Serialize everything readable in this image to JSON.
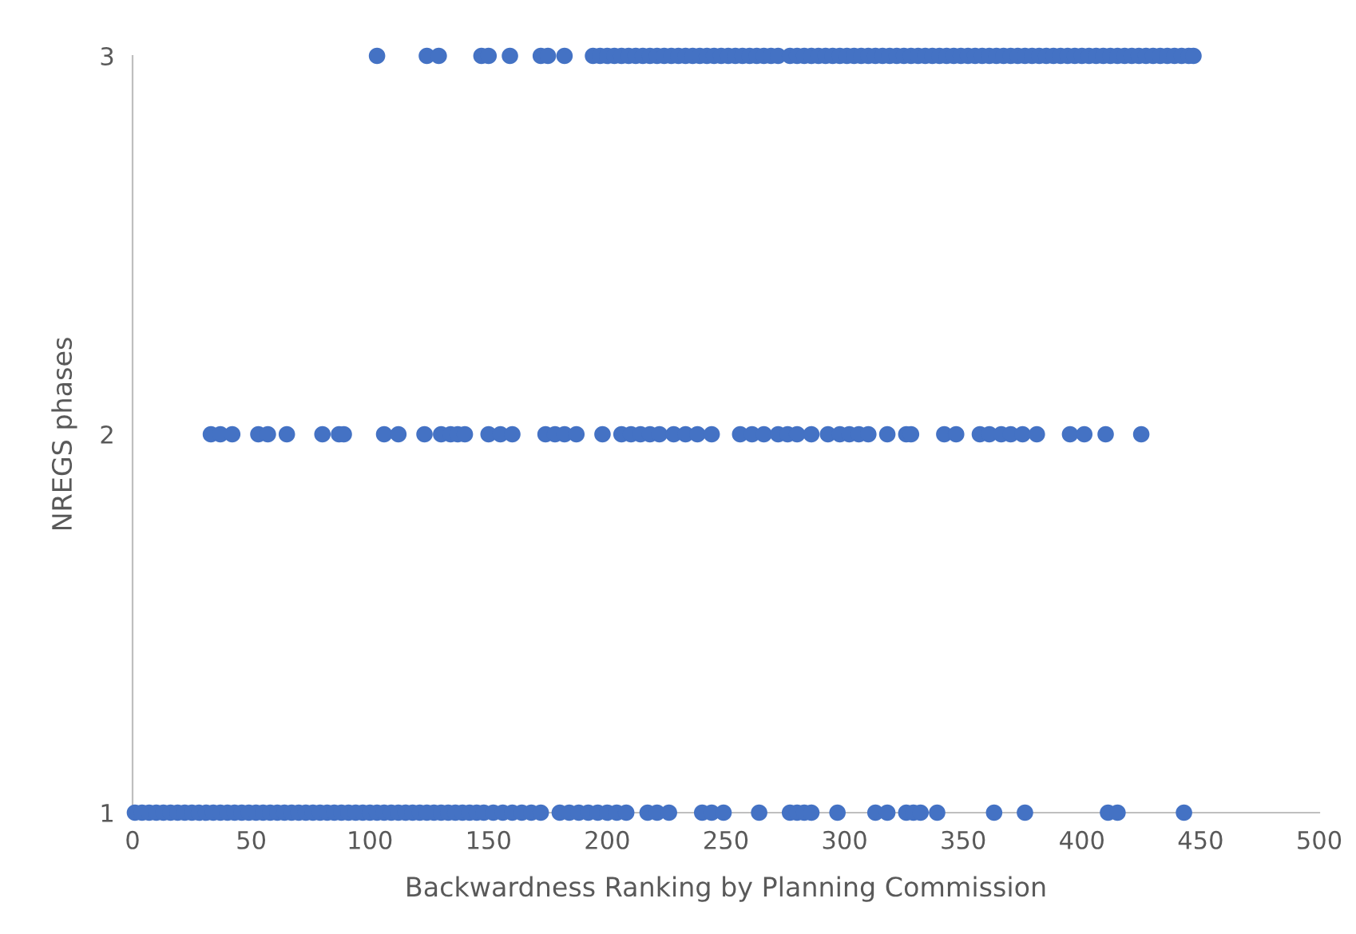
{
  "chart_data": {
    "type": "scatter",
    "xlabel": "Backwardness Ranking by Planning Commission",
    "ylabel": "NREGS phases",
    "xlim": [
      0,
      500
    ],
    "xticks": [
      0,
      50,
      100,
      150,
      200,
      250,
      300,
      350,
      400,
      450,
      500
    ],
    "ylim": [
      1,
      3
    ],
    "yticks": [
      1,
      2,
      3
    ],
    "grid": false,
    "marker": "circle",
    "series": [
      {
        "color": "#4472c4",
        "x": [
          1,
          4,
          7,
          10,
          13,
          16,
          19,
          22,
          25,
          28,
          31,
          34,
          37,
          40,
          43,
          46,
          49,
          52,
          55,
          58,
          61,
          64,
          67,
          70,
          73,
          76,
          79,
          82,
          85,
          88,
          91,
          94,
          97,
          100,
          103,
          106,
          109,
          112,
          115,
          118,
          121,
          124,
          127,
          130,
          133,
          136,
          139,
          142,
          145,
          148,
          152,
          156,
          160,
          164,
          168,
          172,
          180,
          184,
          188,
          192,
          196,
          200,
          204,
          208,
          217,
          221,
          226,
          240,
          244,
          249,
          264,
          277,
          280,
          283,
          286,
          297,
          313,
          318,
          326,
          329,
          332,
          339,
          363,
          376,
          411,
          415,
          443
        ],
        "values": [
          1,
          1,
          1,
          1,
          1,
          1,
          1,
          1,
          1,
          1,
          1,
          1,
          1,
          1,
          1,
          1,
          1,
          1,
          1,
          1,
          1,
          1,
          1,
          1,
          1,
          1,
          1,
          1,
          1,
          1,
          1,
          1,
          1,
          1,
          1,
          1,
          1,
          1,
          1,
          1,
          1,
          1,
          1,
          1,
          1,
          1,
          1,
          1,
          1,
          1,
          1,
          1,
          1,
          1,
          1,
          1,
          1,
          1,
          1,
          1,
          1,
          1,
          1,
          1,
          1,
          1,
          1,
          1,
          1,
          1,
          1,
          1,
          1,
          1,
          1,
          1,
          1,
          1,
          1,
          1,
          1,
          1,
          1,
          1,
          1,
          1,
          1
        ]
      },
      {
        "color": "#4472c4",
        "x": [
          33,
          37,
          42,
          53,
          57,
          65,
          80,
          87,
          89,
          106,
          112,
          123,
          130,
          134,
          137,
          140,
          150,
          155,
          160,
          174,
          178,
          182,
          187,
          198,
          206,
          210,
          214,
          218,
          222,
          228,
          233,
          238,
          244,
          256,
          261,
          266,
          272,
          276,
          280,
          286,
          293,
          298,
          302,
          306,
          310,
          318,
          326,
          328,
          342,
          347,
          357,
          361,
          366,
          370,
          375,
          381,
          395,
          401,
          410,
          425
        ],
        "values": [
          2,
          2,
          2,
          2,
          2,
          2,
          2,
          2,
          2,
          2,
          2,
          2,
          2,
          2,
          2,
          2,
          2,
          2,
          2,
          2,
          2,
          2,
          2,
          2,
          2,
          2,
          2,
          2,
          2,
          2,
          2,
          2,
          2,
          2,
          2,
          2,
          2,
          2,
          2,
          2,
          2,
          2,
          2,
          2,
          2,
          2,
          2,
          2,
          2,
          2,
          2,
          2,
          2,
          2,
          2,
          2,
          2,
          2,
          2,
          2
        ]
      },
      {
        "color": "#4472c4",
        "x": [
          103,
          124,
          129,
          147,
          150,
          159,
          172,
          175,
          182,
          194,
          197,
          200,
          203,
          206,
          209,
          212,
          215,
          218,
          221,
          224,
          227,
          230,
          233,
          236,
          239,
          242,
          245,
          248,
          251,
          254,
          257,
          260,
          263,
          266,
          269,
          272,
          277,
          280,
          283,
          286,
          289,
          292,
          295,
          298,
          301,
          304,
          307,
          310,
          313,
          316,
          319,
          322,
          325,
          328,
          331,
          334,
          337,
          340,
          343,
          346,
          349,
          352,
          355,
          358,
          361,
          364,
          367,
          370,
          373,
          376,
          379,
          382,
          385,
          388,
          391,
          394,
          397,
          400,
          403,
          406,
          409,
          412,
          415,
          418,
          421,
          424,
          427,
          430,
          433,
          436,
          439,
          442,
          445,
          447
        ],
        "values": [
          3,
          3,
          3,
          3,
          3,
          3,
          3,
          3,
          3,
          3,
          3,
          3,
          3,
          3,
          3,
          3,
          3,
          3,
          3,
          3,
          3,
          3,
          3,
          3,
          3,
          3,
          3,
          3,
          3,
          3,
          3,
          3,
          3,
          3,
          3,
          3,
          3,
          3,
          3,
          3,
          3,
          3,
          3,
          3,
          3,
          3,
          3,
          3,
          3,
          3,
          3,
          3,
          3,
          3,
          3,
          3,
          3,
          3,
          3,
          3,
          3,
          3,
          3,
          3,
          3,
          3,
          3,
          3,
          3,
          3,
          3,
          3,
          3,
          3,
          3,
          3,
          3,
          3,
          3,
          3,
          3,
          3,
          3,
          3,
          3,
          3,
          3,
          3,
          3,
          3,
          3,
          3,
          3,
          3
        ]
      }
    ]
  }
}
